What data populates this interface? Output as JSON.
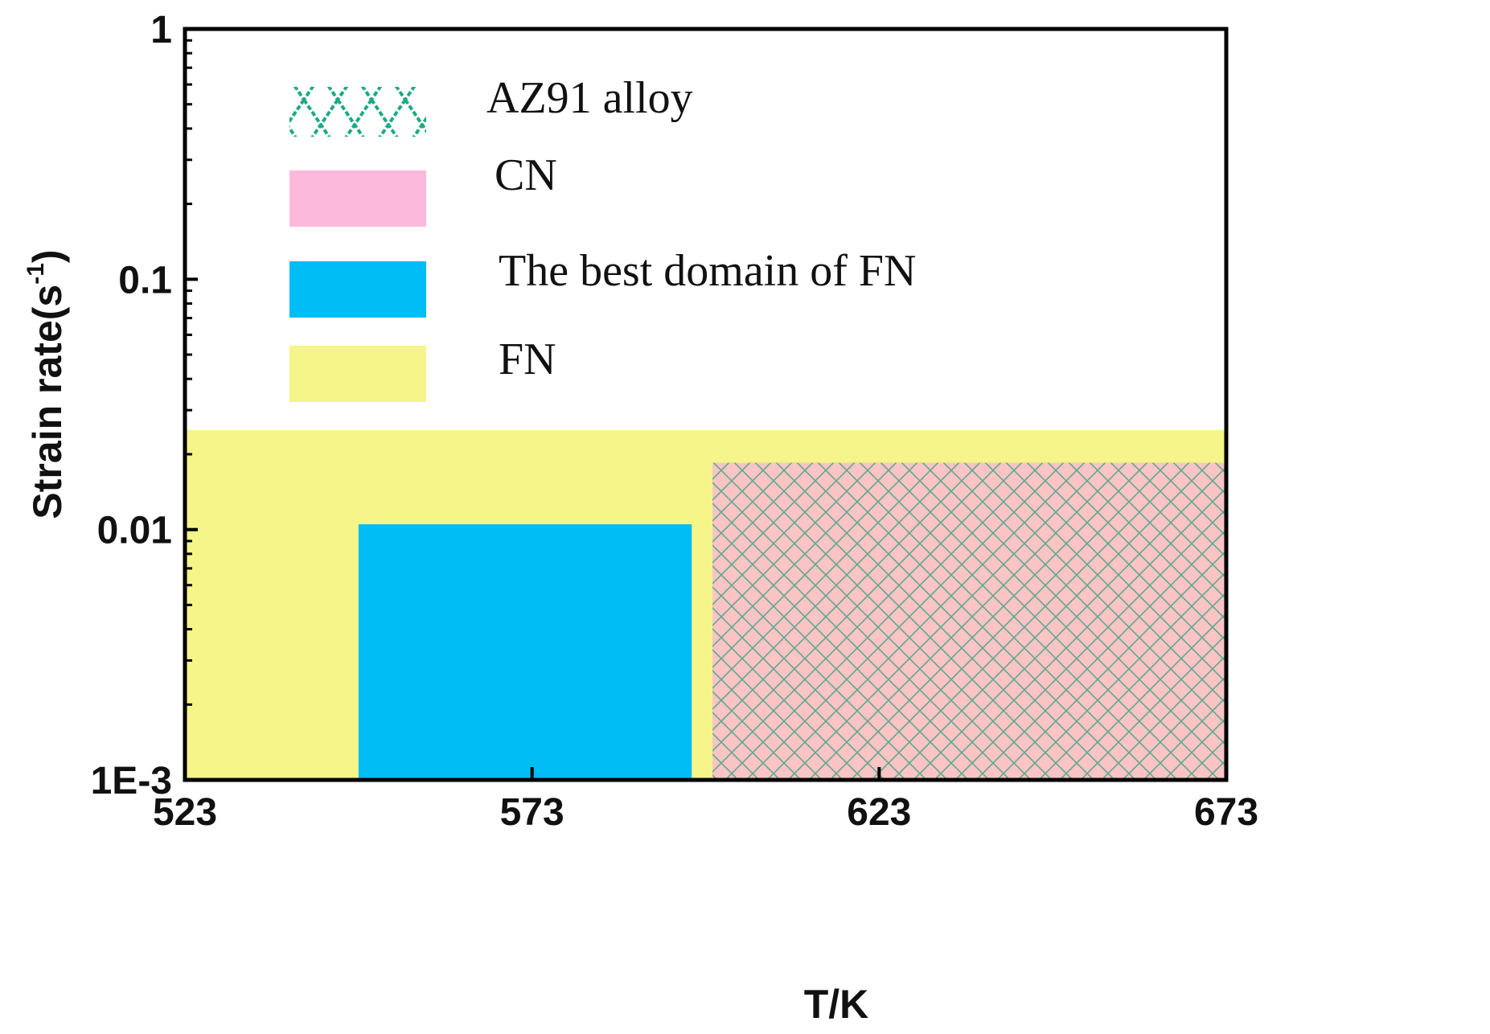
{
  "chart_data": {
    "type": "area",
    "xlabel": "T/K",
    "ylabel": "Strain rate(s",
    "ylabel_sup": "-1",
    "ylabel_close": ")",
    "xlim": [
      523,
      673
    ],
    "ylim": [
      0.001,
      1
    ],
    "yscale": "log",
    "xticks": [
      523,
      573,
      623,
      673
    ],
    "xtick_labels": [
      "523",
      "573",
      "623",
      "673"
    ],
    "yticks": [
      0.001,
      0.01,
      0.1,
      1
    ],
    "ytick_labels": [
      "1E-3",
      "0.01",
      "0.1",
      "1"
    ],
    "legend_position": "top-left",
    "regions": [
      {
        "id": "fn",
        "name": "FN",
        "color": "#f5f58a",
        "x": [
          523,
          673
        ],
        "y": [
          0.001,
          0.025
        ]
      },
      {
        "id": "best",
        "name": "The best domain of FN",
        "color": "#00bdf5",
        "x": [
          548,
          596
        ],
        "y": [
          0.001,
          0.0105
        ]
      },
      {
        "id": "cn",
        "name": "CN",
        "color": "#fcc4c4",
        "x": [
          599,
          673
        ],
        "y": [
          0.001,
          0.0185
        ]
      },
      {
        "id": "az91",
        "name": "AZ91 alloy",
        "color": "#1aaa86",
        "hatch": "cross",
        "x": [
          599,
          673
        ],
        "y": [
          0.001,
          0.0185
        ]
      }
    ],
    "legend": [
      {
        "label": "AZ91 alloy",
        "swatch": "cross-hatch",
        "color": "#1aaa86"
      },
      {
        "label": "CN",
        "swatch": "solid",
        "color": "#fdb9dc"
      },
      {
        "label": "The best domain of FN",
        "swatch": "solid",
        "color": "#00bdf5"
      },
      {
        "label": "FN",
        "swatch": "solid",
        "color": "#f5f58a"
      }
    ]
  }
}
